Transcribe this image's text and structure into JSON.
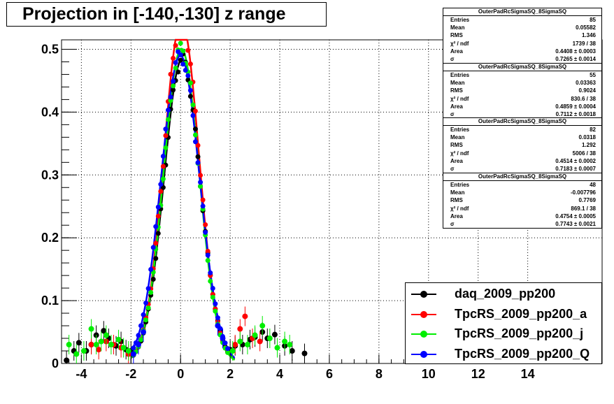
{
  "title": "Projection in [-140,-130] z range",
  "stats": [
    {
      "name": "OuterPadRcSigmaSQ_8SigmaSQ",
      "rows": [
        [
          "Entries",
          "85"
        ],
        [
          "Mean",
          "0.05582"
        ],
        [
          "RMS",
          "1.346"
        ],
        [
          "χ² / ndf",
          "1739 / 38"
        ],
        [
          "Area",
          "0.4408 ± 0.0003"
        ],
        [
          "σ",
          "0.7265 ± 0.0014"
        ]
      ]
    },
    {
      "name": "OuterPadRcSigmaSQ_8SigmaSQ",
      "rows": [
        [
          "Entries",
          "55"
        ],
        [
          "Mean",
          "0.03363"
        ],
        [
          "RMS",
          "0.9024"
        ],
        [
          "χ² / ndf",
          "830.6 / 38"
        ],
        [
          "Area",
          "0.4859 ± 0.0004"
        ],
        [
          "σ",
          "0.7112 ± 0.0018"
        ]
      ]
    },
    {
      "name": "OuterPadRcSigmaSQ_8SigmaSQ",
      "rows": [
        [
          "Entries",
          "82"
        ],
        [
          "Mean",
          "0.0318"
        ],
        [
          "RMS",
          "1.292"
        ],
        [
          "χ² / ndf",
          "5006 / 38"
        ],
        [
          "Area",
          "0.4514 ± 0.0002"
        ],
        [
          "σ",
          "0.7183 ± 0.0007"
        ]
      ]
    },
    {
      "name": "OuterPadRcSigmaSQ_8SigmaSQ",
      "rows": [
        [
          "Entries",
          "48"
        ],
        [
          "Mean",
          "-0.007796"
        ],
        [
          "RMS",
          "0.7769"
        ],
        [
          "χ² / ndf",
          "869.1 / 38"
        ],
        [
          "Area",
          "0.4754 ± 0.0005"
        ],
        [
          "σ",
          "0.7743 ± 0.0021"
        ]
      ]
    }
  ],
  "chart_data": {
    "type": "scatter",
    "title": "Projection in [-140,-130] z range",
    "xlim": [
      -4.8,
      17.0
    ],
    "ylim": [
      0,
      0.515
    ],
    "xticks": [
      -4,
      -2,
      0,
      2,
      4,
      6,
      8,
      10,
      12,
      14
    ],
    "yticks": [
      0,
      0.1,
      0.2,
      0.3,
      0.4,
      0.5
    ],
    "grid": true,
    "legend_position": "bottom-right",
    "series": [
      {
        "name": "daq_2009_pp200",
        "color": "#000000",
        "x": [
          -4.6,
          -4.3,
          -4.1,
          -3.8,
          -3.6,
          -3.4,
          -3.1,
          -2.9,
          -2.6,
          -2.4,
          -2.2,
          -2.0,
          2.0,
          2.2,
          2.5,
          2.8,
          3.0,
          3.3,
          3.5,
          3.8,
          4.2,
          4.5,
          5.0
        ],
        "y": [
          0.005,
          0.02,
          0.033,
          0.02,
          0.03,
          0.045,
          0.052,
          0.04,
          0.028,
          0.035,
          0.022,
          0.02,
          0.022,
          0.028,
          0.03,
          0.038,
          0.042,
          0.05,
          0.04,
          0.046,
          0.028,
          0.02,
          0.016
        ],
        "fit": {
          "amp": 0.484,
          "mu": 0.056,
          "sigma": 0.727
        }
      },
      {
        "name": "TpcRS_2009_pp200_a",
        "color": "#ff0000",
        "x": [
          -3.6,
          -3.3,
          -3.0,
          -2.7,
          -2.4,
          -2.1,
          2.2,
          2.4,
          2.6,
          2.9,
          3.2
        ],
        "y": [
          0.03,
          0.022,
          0.035,
          0.03,
          0.025,
          0.015,
          0.03,
          0.055,
          0.075,
          0.04,
          0.035
        ],
        "fit": {
          "amp": 0.545,
          "mu": 0.034,
          "sigma": 0.711
        }
      },
      {
        "name": "TpcRS_2009_pp200_j",
        "color": "#00ee00",
        "x": [
          -4.5,
          -4.2,
          -3.9,
          -3.6,
          -3.4,
          -3.2,
          -3.0,
          -2.8,
          -2.5,
          -2.3,
          -2.1,
          2.1,
          2.4,
          2.7,
          3.0,
          3.3,
          3.6,
          3.9,
          4.2,
          4.4
        ],
        "y": [
          0.03,
          0.015,
          0.02,
          0.055,
          0.03,
          0.035,
          0.045,
          0.03,
          0.038,
          0.025,
          0.02,
          0.02,
          0.035,
          0.03,
          0.045,
          0.06,
          0.04,
          0.025,
          0.035,
          0.03
        ],
        "fit": {
          "amp": 0.501,
          "mu": 0.032,
          "sigma": 0.718
        }
      },
      {
        "name": "TpcRS_2009_pp200_Q",
        "color": "#0000ff",
        "x": [
          -1.9,
          -1.7,
          -1.5,
          1.5,
          1.7
        ],
        "y": [
          0.015,
          0.03,
          0.05,
          0.06,
          0.04
        ],
        "fit": {
          "amp": 0.49,
          "mu": -0.008,
          "sigma": 0.774
        }
      }
    ]
  }
}
